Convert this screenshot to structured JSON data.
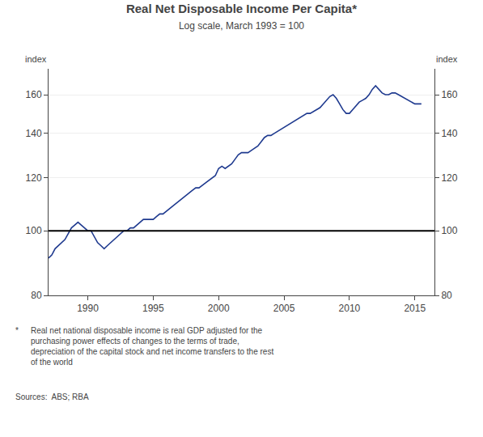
{
  "chart_data": {
    "type": "line",
    "title": "Real Net Disposable Income Per Capita*",
    "subtitle": "Log scale, March 1993 = 100",
    "ylabel": "index",
    "y2label": "index",
    "footnote_marker": "*",
    "footnote": "Real net national disposable income is real GDP adjusted for the\npurchasing power effects of changes to the terms of trade,\ndepreciation of the capital stock and net income transfers to the rest\nof the world",
    "source": "Sources:  ABS; RBA",
    "color": "#1f3a8f",
    "reference_line": 100,
    "log": "y",
    "grid": true,
    "xlim": [
      1987.0,
      2016.5
    ],
    "xticks": [
      1990,
      1995,
      2000,
      2005,
      2010,
      2015
    ],
    "ylim": [
      80,
      175
    ],
    "yticks": [
      80,
      100,
      120,
      140,
      160
    ],
    "y2lim": [
      80,
      175
    ],
    "y2ticks": [
      80,
      100,
      120,
      140,
      160
    ],
    "x": [
      1987.0,
      1987.25,
      1987.5,
      1987.75,
      1988.0,
      1988.25,
      1988.5,
      1988.75,
      1989.0,
      1989.25,
      1989.5,
      1989.75,
      1990.0,
      1990.25,
      1990.5,
      1990.75,
      1991.0,
      1991.25,
      1991.5,
      1991.75,
      1992.0,
      1992.25,
      1992.5,
      1992.75,
      1993.0,
      1993.25,
      1993.5,
      1993.75,
      1994.0,
      1994.25,
      1994.5,
      1994.75,
      1995.0,
      1995.25,
      1995.5,
      1995.75,
      1996.0,
      1996.25,
      1996.5,
      1996.75,
      1997.0,
      1997.25,
      1997.5,
      1997.75,
      1998.0,
      1998.25,
      1998.5,
      1998.75,
      1999.0,
      1999.25,
      1999.5,
      1999.75,
      2000.0,
      2000.25,
      2000.5,
      2000.75,
      2001.0,
      2001.25,
      2001.5,
      2001.75,
      2002.0,
      2002.25,
      2002.5,
      2002.75,
      2003.0,
      2003.25,
      2003.5,
      2003.75,
      2004.0,
      2004.25,
      2004.5,
      2004.75,
      2005.0,
      2005.25,
      2005.5,
      2005.75,
      2006.0,
      2006.25,
      2006.5,
      2006.75,
      2007.0,
      2007.25,
      2007.5,
      2007.75,
      2008.0,
      2008.25,
      2008.5,
      2008.75,
      2009.0,
      2009.25,
      2009.5,
      2009.75,
      2010.0,
      2010.25,
      2010.5,
      2010.75,
      2011.0,
      2011.25,
      2011.5,
      2011.75,
      2012.0,
      2012.25,
      2012.5,
      2012.75,
      2013.0,
      2013.25,
      2013.5,
      2013.75,
      2014.0,
      2014.25,
      2014.5,
      2014.75,
      2015.0,
      2015.25,
      2015.5
    ],
    "values": [
      91,
      92,
      94,
      95,
      96,
      97,
      99,
      101,
      102,
      103,
      102,
      101,
      100,
      100,
      98,
      96,
      95,
      94,
      95,
      96,
      97,
      98,
      99,
      100,
      100,
      101,
      101,
      102,
      103,
      104,
      104,
      104,
      104,
      105,
      106,
      106,
      107,
      108,
      109,
      110,
      111,
      112,
      113,
      114,
      115,
      116,
      116,
      117,
      118,
      119,
      120,
      121,
      124,
      125,
      124,
      125,
      126,
      128,
      130,
      131,
      131,
      131,
      132,
      133,
      134,
      136,
      138,
      139,
      139,
      140,
      141,
      142,
      143,
      144,
      145,
      146,
      147,
      148,
      149,
      150,
      150,
      151,
      152,
      153,
      155,
      157,
      159,
      160,
      158,
      155,
      152,
      150,
      150,
      152,
      154,
      156,
      157,
      158,
      160,
      163,
      165,
      163,
      161,
      160,
      160,
      161,
      161,
      160,
      159,
      158,
      157,
      156,
      155,
      155,
      155
    ]
  }
}
